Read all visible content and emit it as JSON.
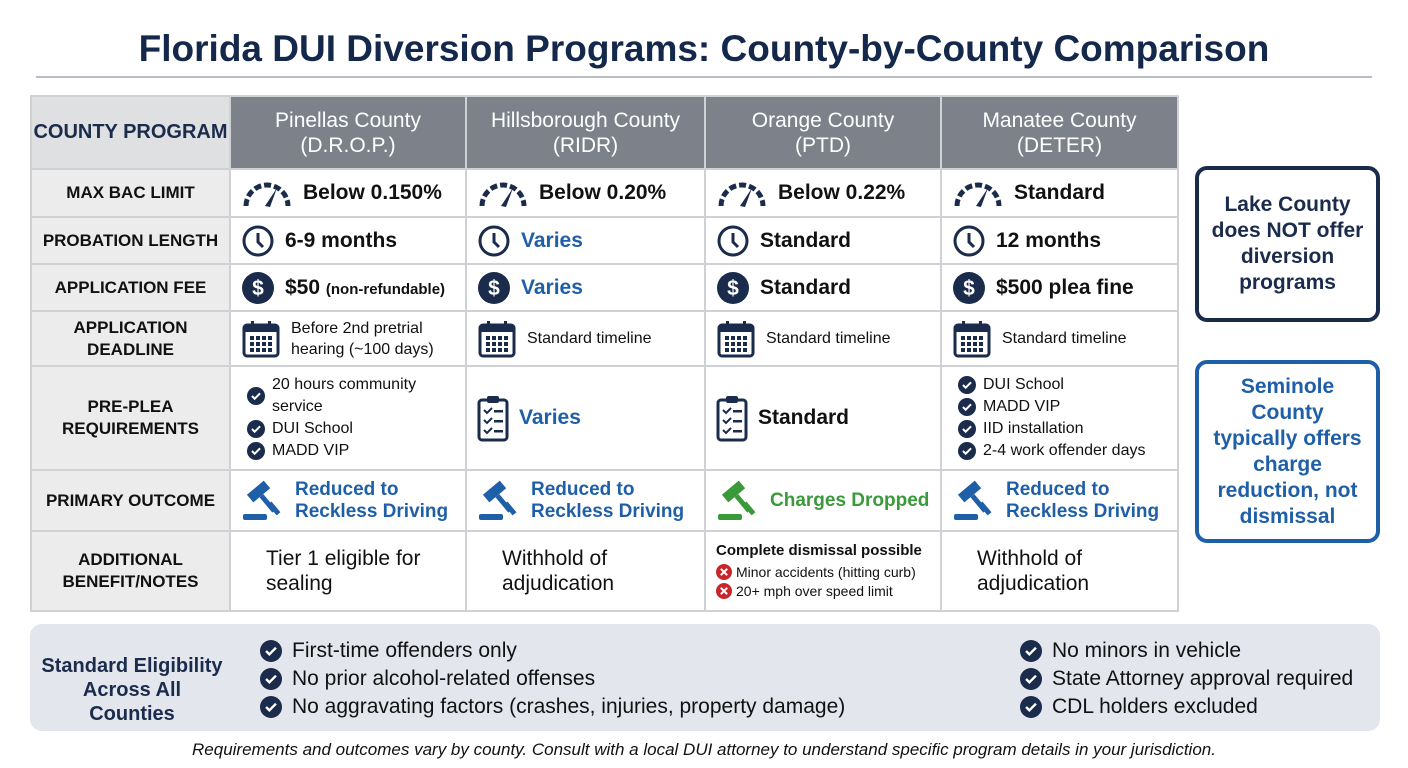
{
  "title": "Florida DUI Diversion Programs: County-by-County Comparison",
  "colors": {
    "navy": "#1b2b4b",
    "blue": "#1f5fa8",
    "green": "#3a9a3a",
    "red": "#c8262b",
    "header_gray": "#7c818a"
  },
  "table": {
    "corner": "COUNTY PROGRAM",
    "counties": [
      {
        "name": "Pinellas County",
        "program": "(D.R.O.P.)"
      },
      {
        "name": "Hillsborough County",
        "program": "(RIDR)"
      },
      {
        "name": "Orange County",
        "program": "(PTD)"
      },
      {
        "name": "Manatee County",
        "program": "(DETER)"
      }
    ],
    "rows": [
      {
        "label": "MAX BAC LIMIT",
        "icon": "gauge-icon",
        "cells": [
          {
            "text": "Below 0.150%",
            "style": "bold"
          },
          {
            "text": "Below 0.20%",
            "style": "bold"
          },
          {
            "text": "Below 0.22%",
            "style": "bold"
          },
          {
            "text": "Standard",
            "style": "bold"
          }
        ]
      },
      {
        "label": "PROBATION LENGTH",
        "icon": "clock-icon",
        "cells": [
          {
            "text": "6-9 months",
            "style": "bold"
          },
          {
            "text": "Varies",
            "style": "blue"
          },
          {
            "text": "Standard",
            "style": "bold"
          },
          {
            "text": "12 months",
            "style": "bold"
          }
        ]
      },
      {
        "label": "APPLICATION FEE",
        "icon": "dollar-icon",
        "cells": [
          {
            "text": "$50",
            "sub": "(non-refundable)",
            "style": "bold"
          },
          {
            "text": "Varies",
            "style": "blue"
          },
          {
            "text": "Standard",
            "style": "bold"
          },
          {
            "text": "$500 plea fine",
            "style": "bold"
          }
        ]
      },
      {
        "label": "APPLICATION DEADLINE",
        "icon": "calendar-icon",
        "cells": [
          {
            "text": "Before 2nd pretrial hearing (~100 days)",
            "style": "small"
          },
          {
            "text": "Standard timeline",
            "style": "small"
          },
          {
            "text": "Standard timeline",
            "style": "small"
          },
          {
            "text": "Standard timeline",
            "style": "small"
          }
        ]
      },
      {
        "label": "PRE-PLEA REQUIREMENTS",
        "icon": "clipboard-checklist-icon",
        "cells": [
          {
            "list": [
              "20 hours community service",
              "DUI School",
              "MADD VIP"
            ]
          },
          {
            "text": "Varies",
            "style": "blue"
          },
          {
            "text": "Standard",
            "style": "bold"
          },
          {
            "list": [
              "DUI School",
              "MADD VIP",
              "IID installation",
              "2-4 work offender days"
            ]
          }
        ]
      },
      {
        "label": "PRIMARY OUTCOME",
        "icon": "gavel-icon",
        "cells": [
          {
            "text": "Reduced to Reckless Driving",
            "style": "outblue"
          },
          {
            "text": "Reduced to Reckless Driving",
            "style": "outblue"
          },
          {
            "text": "Charges Dropped",
            "style": "green"
          },
          {
            "text": "Reduced to Reckless Driving",
            "style": "outblue"
          }
        ]
      },
      {
        "label": "ADDITIONAL BENEFIT/NOTES",
        "cells": [
          {
            "notes": "Tier 1 eligible for sealing"
          },
          {
            "notes": "Withhold of adjudication"
          },
          {
            "title": "Complete dismissal possible",
            "xlist": [
              "Minor accidents (hitting curb)",
              "20+ mph over speed limit"
            ]
          },
          {
            "notes": "Withhold of adjudication"
          }
        ]
      }
    ]
  },
  "side": {
    "lake": "Lake County does NOT offer diversion programs",
    "seminole": "Seminole County typically offers charge reduction, not dismissal"
  },
  "eligibility": {
    "title": "Standard Eligibility Across All Counties",
    "left": [
      "First-time offenders only",
      "No prior alcohol-related offenses",
      "No aggravating factors (crashes, injuries, property damage)"
    ],
    "right": [
      "No minors in vehicle",
      "State Attorney approval required",
      "CDL holders excluded"
    ]
  },
  "footnote": "Requirements and outcomes vary by county. Consult with a local DUI attorney to understand specific program details in your jurisdiction."
}
